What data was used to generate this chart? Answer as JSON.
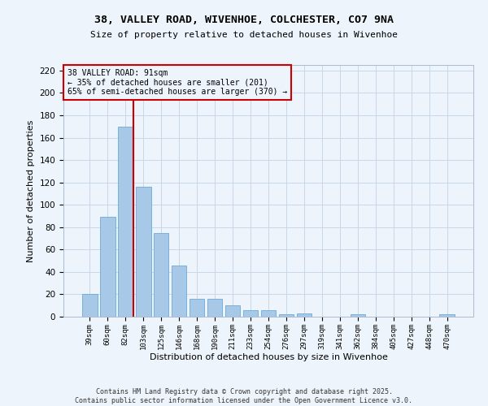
{
  "title_line1": "38, VALLEY ROAD, WIVENHOE, COLCHESTER, CO7 9NA",
  "title_line2": "Size of property relative to detached houses in Wivenhoe",
  "xlabel": "Distribution of detached houses by size in Wivenhoe",
  "ylabel": "Number of detached properties",
  "categories": [
    "39sqm",
    "60sqm",
    "82sqm",
    "103sqm",
    "125sqm",
    "146sqm",
    "168sqm",
    "190sqm",
    "211sqm",
    "233sqm",
    "254sqm",
    "276sqm",
    "297sqm",
    "319sqm",
    "341sqm",
    "362sqm",
    "384sqm",
    "405sqm",
    "427sqm",
    "448sqm",
    "470sqm"
  ],
  "values": [
    20,
    89,
    170,
    116,
    75,
    46,
    16,
    16,
    10,
    6,
    6,
    2,
    3,
    0,
    0,
    2,
    0,
    0,
    0,
    0,
    2
  ],
  "bar_color": "#a8c8e8",
  "bar_edge_color": "#5a9fd4",
  "grid_color": "#c8d8e8",
  "background_color": "#eef4fb",
  "vline_bar_index": 2,
  "vline_color": "#cc0000",
  "annotation_text": "38 VALLEY ROAD: 91sqm\n← 35% of detached houses are smaller (201)\n65% of semi-detached houses are larger (370) →",
  "annotation_box_color": "#cc0000",
  "ylim": [
    0,
    225
  ],
  "yticks": [
    0,
    20,
    40,
    60,
    80,
    100,
    120,
    140,
    160,
    180,
    200,
    220
  ],
  "footer": "Contains HM Land Registry data © Crown copyright and database right 2025.\nContains public sector information licensed under the Open Government Licence v3.0."
}
